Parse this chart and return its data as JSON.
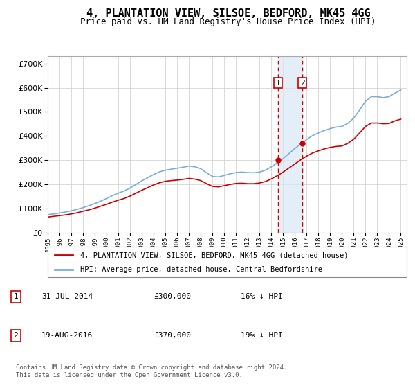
{
  "title": "4, PLANTATION VIEW, SILSOE, BEDFORD, MK45 4GG",
  "subtitle": "Price paid vs. HM Land Registry's House Price Index (HPI)",
  "title_fontsize": 11,
  "subtitle_fontsize": 9,
  "background_color": "#ffffff",
  "plot_bg_color": "#ffffff",
  "grid_color": "#cccccc",
  "ylim": [
    0,
    730000
  ],
  "yticks": [
    0,
    100000,
    200000,
    300000,
    400000,
    500000,
    600000,
    700000
  ],
  "xlim_start": 1995.0,
  "xlim_end": 2025.5,
  "xticks": [
    1995,
    1996,
    1997,
    1998,
    1999,
    2000,
    2001,
    2002,
    2003,
    2004,
    2005,
    2006,
    2007,
    2008,
    2009,
    2010,
    2011,
    2012,
    2013,
    2014,
    2015,
    2016,
    2017,
    2018,
    2019,
    2020,
    2021,
    2022,
    2023,
    2024,
    2025
  ],
  "hpi_color": "#7aacdc",
  "price_color": "#cc0000",
  "marker_color": "#cc0000",
  "vline_color": "#cc0000",
  "sale1_date": 2014.58,
  "sale1_price": 300000,
  "sale2_date": 2016.63,
  "sale2_price": 370000,
  "shade_color": "#d8e8f5",
  "legend_label_price": "4, PLANTATION VIEW, SILSOE, BEDFORD, MK45 4GG (detached house)",
  "legend_label_hpi": "HPI: Average price, detached house, Central Bedfordshire",
  "table_rows": [
    {
      "num": "1",
      "date": "31-JUL-2014",
      "price": "£300,000",
      "pct": "16% ↓ HPI"
    },
    {
      "num": "2",
      "date": "19-AUG-2016",
      "price": "£370,000",
      "pct": "19% ↓ HPI"
    }
  ],
  "footnote": "Contains HM Land Registry data © Crown copyright and database right 2024.\nThis data is licensed under the Open Government Licence v3.0.",
  "hpi_data_x": [
    1995.0,
    1995.5,
    1996.0,
    1996.5,
    1997.0,
    1997.5,
    1998.0,
    1998.5,
    1999.0,
    1999.5,
    2000.0,
    2000.5,
    2001.0,
    2001.5,
    2002.0,
    2002.5,
    2003.0,
    2003.5,
    2004.0,
    2004.5,
    2005.0,
    2005.5,
    2006.0,
    2006.5,
    2007.0,
    2007.5,
    2008.0,
    2008.5,
    2009.0,
    2009.5,
    2010.0,
    2010.5,
    2011.0,
    2011.5,
    2012.0,
    2012.5,
    2013.0,
    2013.5,
    2014.0,
    2014.5,
    2015.0,
    2015.5,
    2016.0,
    2016.5,
    2017.0,
    2017.5,
    2018.0,
    2018.5,
    2019.0,
    2019.5,
    2020.0,
    2020.5,
    2021.0,
    2021.5,
    2022.0,
    2022.5,
    2023.0,
    2023.5,
    2024.0,
    2024.5,
    2025.0
  ],
  "hpi_data_y": [
    75000,
    78000,
    82000,
    86000,
    91000,
    97000,
    104000,
    112000,
    121000,
    131000,
    142000,
    154000,
    164000,
    173000,
    185000,
    200000,
    215000,
    228000,
    241000,
    252000,
    259000,
    263000,
    267000,
    271000,
    276000,
    273000,
    265000,
    248000,
    233000,
    231000,
    237000,
    244000,
    249000,
    251000,
    249000,
    248000,
    251000,
    259000,
    273000,
    289000,
    307000,
    328000,
    349000,
    367000,
    386000,
    402000,
    413000,
    423000,
    431000,
    437000,
    440000,
    453000,
    474000,
    508000,
    544000,
    563000,
    563000,
    559000,
    563000,
    578000,
    590000
  ],
  "price_data_x": [
    1995.0,
    1995.5,
    1996.0,
    1996.5,
    1997.0,
    1997.5,
    1998.0,
    1998.5,
    1999.0,
    1999.5,
    2000.0,
    2000.5,
    2001.0,
    2001.5,
    2002.0,
    2002.5,
    2003.0,
    2003.5,
    2004.0,
    2004.5,
    2005.0,
    2005.5,
    2006.0,
    2006.5,
    2007.0,
    2007.5,
    2008.0,
    2008.5,
    2009.0,
    2009.5,
    2010.0,
    2010.5,
    2011.0,
    2011.5,
    2012.0,
    2012.5,
    2013.0,
    2013.5,
    2014.0,
    2014.5,
    2015.0,
    2015.5,
    2016.0,
    2016.5,
    2017.0,
    2017.5,
    2018.0,
    2018.5,
    2019.0,
    2019.5,
    2020.0,
    2020.5,
    2021.0,
    2021.5,
    2022.0,
    2022.5,
    2023.0,
    2023.5,
    2024.0,
    2024.5,
    2025.0
  ],
  "price_data_y": [
    65000,
    68000,
    71000,
    74000,
    78000,
    83000,
    89000,
    95000,
    102000,
    110000,
    118000,
    127000,
    135000,
    142000,
    152000,
    164000,
    176000,
    187000,
    198000,
    207000,
    213000,
    216000,
    218000,
    221000,
    225000,
    222000,
    216000,
    203000,
    192000,
    190000,
    195000,
    200000,
    204000,
    205000,
    203000,
    203000,
    206000,
    212000,
    223000,
    236000,
    251000,
    268000,
    285000,
    302000,
    317000,
    330000,
    339000,
    347000,
    353000,
    357000,
    359000,
    370000,
    387000,
    413000,
    440000,
    454000,
    454000,
    451000,
    452000,
    463000,
    470000
  ]
}
